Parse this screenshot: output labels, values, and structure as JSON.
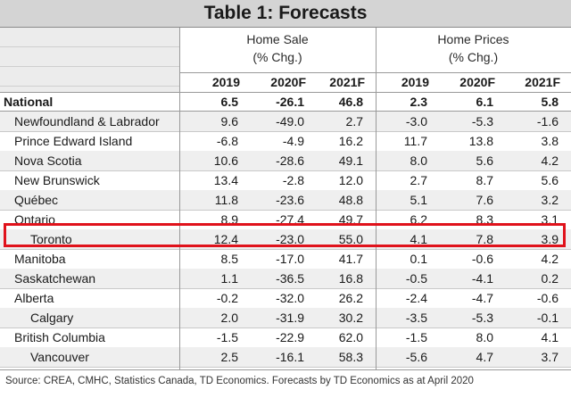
{
  "title": "Table 1: Forecasts",
  "groups": {
    "home_sale": {
      "line1": "Home Sale",
      "line2": "(% Chg.)"
    },
    "home_prices": {
      "line1": "Home Prices",
      "line2": "(% Chg.)"
    }
  },
  "years": [
    "2019",
    "2020F",
    "2021F",
    "2019",
    "2020F",
    "2021F"
  ],
  "rows": [
    {
      "name": "National",
      "values": [
        "6.5",
        "-26.1",
        "46.8",
        "2.3",
        "6.1",
        "5.8"
      ]
    },
    {
      "name": "Newfoundland & Labrador",
      "values": [
        "9.6",
        "-49.0",
        "2.7",
        "-3.0",
        "-5.3",
        "-1.6"
      ]
    },
    {
      "name": "Prince Edward Island",
      "values": [
        "-6.8",
        "-4.9",
        "16.2",
        "11.7",
        "13.8",
        "3.8"
      ]
    },
    {
      "name": "Nova Scotia",
      "values": [
        "10.6",
        "-28.6",
        "49.1",
        "8.0",
        "5.6",
        "4.2"
      ]
    },
    {
      "name": "New Brunswick",
      "values": [
        "13.4",
        "-2.8",
        "12.0",
        "2.7",
        "8.7",
        "5.6"
      ]
    },
    {
      "name": "Québec",
      "values": [
        "11.8",
        "-23.6",
        "48.8",
        "5.1",
        "7.6",
        "3.2"
      ]
    },
    {
      "name": "Ontario",
      "values": [
        "8.9",
        "-27.4",
        "49.7",
        "6.2",
        "8.3",
        "3.1"
      ]
    },
    {
      "name": "Toronto",
      "values": [
        "12.4",
        "-23.0",
        "55.0",
        "4.1",
        "7.8",
        "3.9"
      ]
    },
    {
      "name": "Manitoba",
      "values": [
        "8.5",
        "-17.0",
        "41.7",
        "0.1",
        "-0.6",
        "4.2"
      ]
    },
    {
      "name": "Saskatchewan",
      "values": [
        "1.1",
        "-36.5",
        "16.8",
        "-0.5",
        "-4.1",
        "0.2"
      ]
    },
    {
      "name": "Alberta",
      "values": [
        "-0.2",
        "-32.0",
        "26.2",
        "-2.4",
        "-4.7",
        "-0.6"
      ]
    },
    {
      "name": "Calgary",
      "values": [
        "2.0",
        "-31.9",
        "30.2",
        "-3.5",
        "-5.3",
        "-0.1"
      ]
    },
    {
      "name": "British Columbia",
      "values": [
        "-1.5",
        "-22.9",
        "62.0",
        "-1.5",
        "8.0",
        "4.1"
      ]
    },
    {
      "name": "Vancouver",
      "values": [
        "2.5",
        "-16.1",
        "58.3",
        "-5.6",
        "4.7",
        "3.7"
      ]
    }
  ],
  "source": "Source: CREA, CMHC, Statistics Canada, TD Economics. Forecasts by TD Economics as at April 2020",
  "colors": {
    "highlight": "#e0121b",
    "header_bg": "#d4d4d4",
    "alt_row": "#efefef"
  }
}
